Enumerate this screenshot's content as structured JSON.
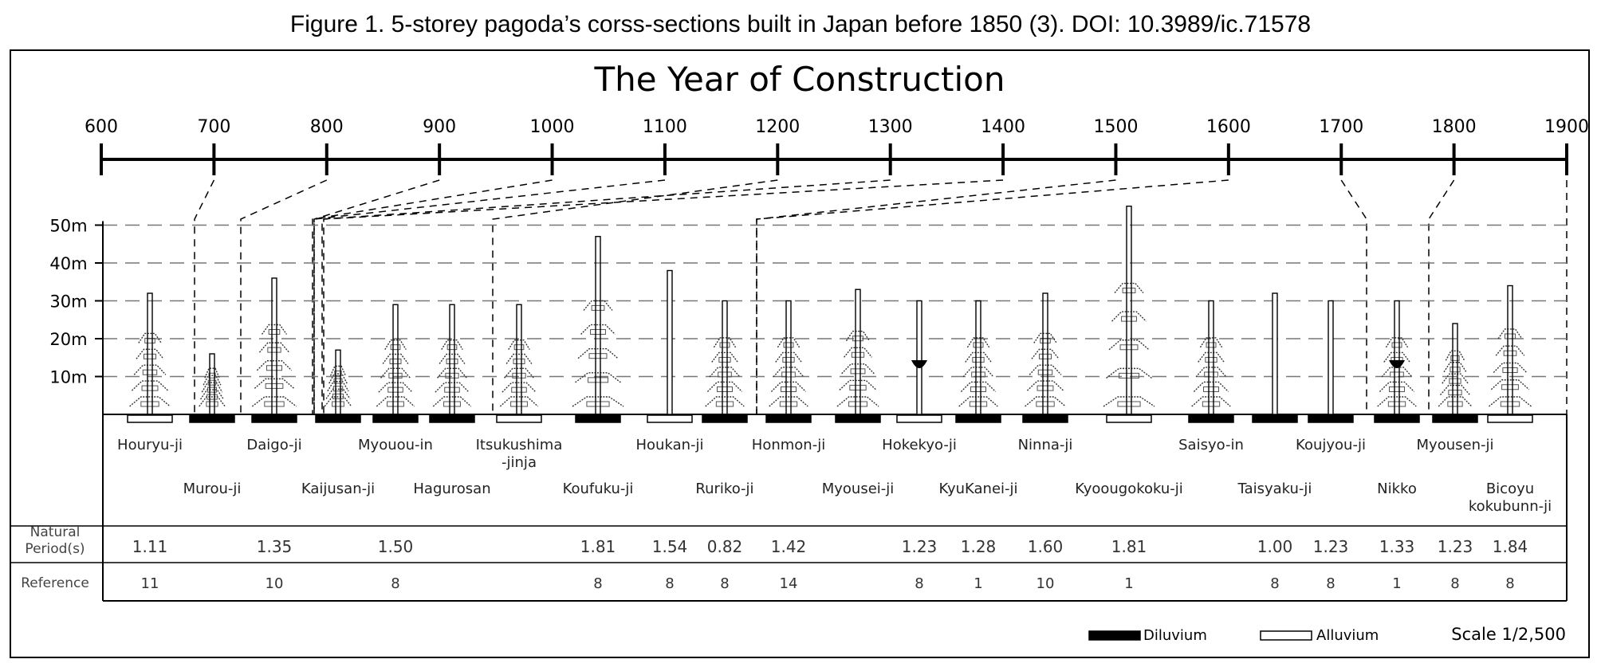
{
  "caption": "Figure 1. 5-storey pagoda’s corss-sections built in Japan before 1850 (3). DOI: 10.3989/ic.71578",
  "title": "The Year of Construction",
  "timeline_ticks": [
    "600",
    "700",
    "800",
    "900",
    "1000",
    "1100",
    "1200",
    "1300",
    "1400",
    "1500",
    "1600",
    "1700",
    "1800",
    "1900"
  ],
  "height_ticks": [
    "50m",
    "40m",
    "30m",
    "20m",
    "10m"
  ],
  "row_labels": {
    "period": "Natural Period(s)",
    "period_l1": "Natural",
    "period_l2": "Period(s)",
    "reference": "Reference"
  },
  "legend": {
    "diluvium": "Diluvium",
    "alluvium": "Alluvium",
    "scale": "Scale 1/2,500"
  },
  "chart_data": {
    "type": "table",
    "pagodas": [
      {
        "name": "Houryu-ji",
        "height": 32,
        "soil": "alluvium",
        "period": "1.11",
        "reference": "11"
      },
      {
        "name": "Murou-ji",
        "height": 16,
        "soil": "diluvium",
        "period": "",
        "reference": ""
      },
      {
        "name": "Daigo-ji",
        "height": 36,
        "soil": "diluvium",
        "period": "1.35",
        "reference": "10"
      },
      {
        "name": "Kaijusan-ji",
        "height": 17,
        "soil": "diluvium",
        "period": "",
        "reference": ""
      },
      {
        "name": "Myouou-in",
        "height": 29,
        "soil": "diluvium",
        "period": "1.50",
        "reference": "8"
      },
      {
        "name": "Hagurosan",
        "height": 29,
        "soil": "diluvium",
        "period": "",
        "reference": ""
      },
      {
        "name": "Itsukushima -jinja",
        "name_l1": "Itsukushima",
        "name_l2": "-jinja",
        "height": 29,
        "soil": "alluvium",
        "period": "",
        "reference": ""
      },
      {
        "name": "Koufuku-ji",
        "height": 47,
        "soil": "diluvium",
        "period": "1.81",
        "reference": "8"
      },
      {
        "name": "Houkan-ji",
        "height": 38,
        "soil": "alluvium",
        "period": "1.54",
        "reference": "8"
      },
      {
        "name": "Ruriko-ji",
        "height": 30,
        "soil": "diluvium",
        "period": "0.82",
        "reference": "8"
      },
      {
        "name": "Honmon-ji",
        "height": 30,
        "soil": "diluvium",
        "period": "1.42",
        "reference": "14"
      },
      {
        "name": "Myousei-ji",
        "height": 33,
        "soil": "diluvium",
        "period": "",
        "reference": ""
      },
      {
        "name": "Hokekyo-ji",
        "height": 30,
        "soil": "alluvium",
        "period": "1.23",
        "reference": "8"
      },
      {
        "name": "KyuKanei-ji",
        "height": 30,
        "soil": "diluvium",
        "period": "1.28",
        "reference": "1"
      },
      {
        "name": "Ninna-ji",
        "height": 32,
        "soil": "diluvium",
        "period": "1.60",
        "reference": "10"
      },
      {
        "name": "Kyoougokoku-ji",
        "height": 55,
        "soil": "alluvium",
        "period": "1.81",
        "reference": "1"
      },
      {
        "name": "Saisyo-in",
        "height": 30,
        "soil": "diluvium",
        "period": "",
        "reference": ""
      },
      {
        "name": "Taisyaku-ji",
        "height": 32,
        "soil": "diluvium",
        "period": "1.00",
        "reference": "8"
      },
      {
        "name": "Koujyou-ji",
        "height": 30,
        "soil": "diluvium",
        "period": "1.23",
        "reference": "8"
      },
      {
        "name": "Nikko",
        "height": 30,
        "soil": "diluvium",
        "period": "1.33",
        "reference": "1"
      },
      {
        "name": "Myousen-ji",
        "height": 24,
        "soil": "diluvium",
        "period": "1.23",
        "reference": "8"
      },
      {
        "name": "Bicoyu kokubunn-ji",
        "name_l1": "Bicoyu",
        "name_l2": "kokubunn-ji",
        "height": 34,
        "soil": "alluvium",
        "period": "1.84",
        "reference": "8"
      }
    ]
  }
}
